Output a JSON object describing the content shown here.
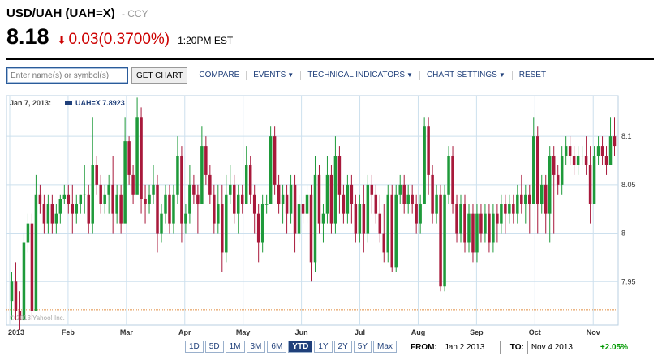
{
  "header": {
    "title": "USD/UAH (UAH=X)",
    "exchange": "- CCY",
    "price": "8.18",
    "change": "0.03",
    "change_pct": "(0.3700%)",
    "time": "1:20PM EST"
  },
  "toolbar": {
    "symbol_placeholder": "Enter name(s) or symbol(s)",
    "get_chart": "GET CHART",
    "compare": "COMPARE",
    "events": "EVENTS",
    "technical_indicators": "TECHNICAL INDICATORS",
    "chart_settings": "CHART SETTINGS",
    "reset": "RESET"
  },
  "legend": {
    "date": "Jan 7, 2013:",
    "series": "UAH=X 7.8923"
  },
  "copyright": "© 2013 Yahoo! Inc.",
  "timeframes": [
    "1D",
    "5D",
    "1M",
    "3M",
    "6M",
    "YTD",
    "1Y",
    "2Y",
    "5Y",
    "Max"
  ],
  "active_timeframe": "YTD",
  "range": {
    "from_label": "FROM:",
    "from": "Jan 2 2013",
    "to_label": "TO:",
    "to": "Nov 4 2013",
    "change": "+2.05%"
  },
  "colors": {
    "up": "#1e9a3a",
    "down": "#a8193b",
    "grid": "#cde0ee",
    "ref_line": "#e08a3c"
  },
  "chart_data": {
    "type": "candlestick",
    "x_ticks": [
      "2013",
      "Feb",
      "Mar",
      "Apr",
      "May",
      "Jun",
      "Jul",
      "Aug",
      "Sep",
      "Oct",
      "Nov"
    ],
    "y_ticks": [
      7.95,
      8.0,
      8.05,
      8.1
    ],
    "ylim": [
      7.905,
      8.142
    ],
    "reference_line": 7.921,
    "grid": true,
    "series": [
      {
        "name": "UAH=X",
        "values": [
          {
            "o": 7.93,
            "h": 7.96,
            "l": 7.91,
            "c": 7.95
          },
          {
            "o": 7.95,
            "h": 7.97,
            "l": 7.91,
            "c": 7.92
          },
          {
            "o": 7.92,
            "h": 7.94,
            "l": 7.9,
            "c": 7.91
          },
          {
            "o": 7.91,
            "h": 8.0,
            "l": 7.91,
            "c": 7.99
          },
          {
            "o": 7.99,
            "h": 8.02,
            "l": 7.98,
            "c": 8.01
          },
          {
            "o": 8.01,
            "h": 8.02,
            "l": 7.91,
            "c": 7.92
          },
          {
            "o": 7.92,
            "h": 8.06,
            "l": 7.92,
            "c": 8.04
          },
          {
            "o": 8.04,
            "h": 8.05,
            "l": 8.02,
            "c": 8.03
          },
          {
            "o": 8.03,
            "h": 8.04,
            "l": 8.0,
            "c": 8.01
          },
          {
            "o": 8.01,
            "h": 8.04,
            "l": 8.0,
            "c": 8.03
          },
          {
            "o": 8.03,
            "h": 8.04,
            "l": 8.0,
            "c": 8.01
          },
          {
            "o": 8.01,
            "h": 8.03,
            "l": 8.0,
            "c": 8.02
          },
          {
            "o": 8.02,
            "h": 8.04,
            "l": 8.01,
            "c": 8.035
          },
          {
            "o": 8.035,
            "h": 8.05,
            "l": 8.03,
            "c": 8.04
          },
          {
            "o": 8.04,
            "h": 8.05,
            "l": 8.02,
            "c": 8.03
          },
          {
            "o": 8.03,
            "h": 8.05,
            "l": 8.0,
            "c": 8.02
          },
          {
            "o": 8.02,
            "h": 8.04,
            "l": 8.01,
            "c": 8.03
          },
          {
            "o": 8.03,
            "h": 8.04,
            "l": 8.02,
            "c": 8.04
          },
          {
            "o": 8.04,
            "h": 8.07,
            "l": 8.02,
            "c": 8.04
          },
          {
            "o": 8.04,
            "h": 8.05,
            "l": 8.0,
            "c": 8.01
          },
          {
            "o": 8.01,
            "h": 8.12,
            "l": 8.0,
            "c": 8.07
          },
          {
            "o": 8.07,
            "h": 8.08,
            "l": 8.04,
            "c": 8.05
          },
          {
            "o": 8.05,
            "h": 8.06,
            "l": 8.02,
            "c": 8.03
          },
          {
            "o": 8.03,
            "h": 8.05,
            "l": 8.02,
            "c": 8.04
          },
          {
            "o": 8.04,
            "h": 8.06,
            "l": 8.02,
            "c": 8.05
          },
          {
            "o": 8.05,
            "h": 8.08,
            "l": 8.0,
            "c": 8.02
          },
          {
            "o": 8.02,
            "h": 8.05,
            "l": 8.01,
            "c": 8.04
          },
          {
            "o": 8.04,
            "h": 8.05,
            "l": 8.0,
            "c": 8.01
          },
          {
            "o": 8.01,
            "h": 8.12,
            "l": 8.02,
            "c": 8.095
          },
          {
            "o": 8.095,
            "h": 8.1,
            "l": 8.05,
            "c": 8.06
          },
          {
            "o": 8.06,
            "h": 8.07,
            "l": 8.03,
            "c": 8.04
          },
          {
            "o": 8.04,
            "h": 8.14,
            "l": 8.05,
            "c": 8.12
          },
          {
            "o": 8.12,
            "h": 8.13,
            "l": 8.02,
            "c": 8.035
          },
          {
            "o": 8.035,
            "h": 8.05,
            "l": 8.01,
            "c": 8.03
          },
          {
            "o": 8.03,
            "h": 8.05,
            "l": 8.02,
            "c": 8.04
          },
          {
            "o": 8.04,
            "h": 8.07,
            "l": 8.03,
            "c": 8.05
          },
          {
            "o": 8.05,
            "h": 8.06,
            "l": 7.98,
            "c": 8.0
          },
          {
            "o": 8.0,
            "h": 8.03,
            "l": 7.99,
            "c": 8.02
          },
          {
            "o": 8.02,
            "h": 8.05,
            "l": 8.01,
            "c": 8.04
          },
          {
            "o": 8.04,
            "h": 8.05,
            "l": 8.0,
            "c": 8.01
          },
          {
            "o": 8.01,
            "h": 8.05,
            "l": 8.0,
            "c": 8.04
          },
          {
            "o": 8.04,
            "h": 8.1,
            "l": 8.03,
            "c": 8.08
          },
          {
            "o": 8.08,
            "h": 8.09,
            "l": 7.99,
            "c": 8.01
          },
          {
            "o": 8.01,
            "h": 8.03,
            "l": 8.0,
            "c": 8.02
          },
          {
            "o": 8.02,
            "h": 8.07,
            "l": 8.01,
            "c": 8.05
          },
          {
            "o": 8.05,
            "h": 8.06,
            "l": 8.03,
            "c": 8.04
          },
          {
            "o": 8.04,
            "h": 8.05,
            "l": 8.0,
            "c": 8.03
          },
          {
            "o": 8.03,
            "h": 8.11,
            "l": 8.03,
            "c": 8.09
          },
          {
            "o": 8.09,
            "h": 8.1,
            "l": 8.05,
            "c": 8.06
          },
          {
            "o": 8.06,
            "h": 8.07,
            "l": 8.03,
            "c": 8.04
          },
          {
            "o": 8.04,
            "h": 8.05,
            "l": 8.0,
            "c": 8.01
          },
          {
            "o": 8.01,
            "h": 8.05,
            "l": 8.0,
            "c": 8.03
          },
          {
            "o": 8.03,
            "h": 8.05,
            "l": 7.96,
            "c": 7.98
          },
          {
            "o": 7.98,
            "h": 8.06,
            "l": 7.97,
            "c": 8.04
          },
          {
            "o": 8.04,
            "h": 8.07,
            "l": 8.03,
            "c": 8.05
          },
          {
            "o": 8.05,
            "h": 8.06,
            "l": 8.01,
            "c": 8.02
          },
          {
            "o": 8.02,
            "h": 8.05,
            "l": 8.0,
            "c": 8.04
          },
          {
            "o": 8.04,
            "h": 8.05,
            "l": 8.02,
            "c": 8.03
          },
          {
            "o": 8.03,
            "h": 8.09,
            "l": 8.03,
            "c": 8.07
          },
          {
            "o": 8.07,
            "h": 8.08,
            "l": 8.03,
            "c": 8.04
          },
          {
            "o": 8.04,
            "h": 8.05,
            "l": 8.0,
            "c": 8.02
          },
          {
            "o": 8.02,
            "h": 8.03,
            "l": 7.97,
            "c": 7.99
          },
          {
            "o": 7.99,
            "h": 8.04,
            "l": 7.98,
            "c": 8.03
          },
          {
            "o": 8.03,
            "h": 8.04,
            "l": 8.02,
            "c": 8.03
          },
          {
            "o": 8.03,
            "h": 8.11,
            "l": 8.03,
            "c": 8.1
          },
          {
            "o": 8.1,
            "h": 8.11,
            "l": 8.04,
            "c": 8.05
          },
          {
            "o": 8.05,
            "h": 8.06,
            "l": 8.02,
            "c": 8.03
          },
          {
            "o": 8.03,
            "h": 8.05,
            "l": 8.01,
            "c": 8.04
          },
          {
            "o": 8.04,
            "h": 8.05,
            "l": 8.0,
            "c": 8.02
          },
          {
            "o": 8.02,
            "h": 8.06,
            "l": 8.01,
            "c": 8.05
          },
          {
            "o": 8.05,
            "h": 8.06,
            "l": 7.98,
            "c": 8.0
          },
          {
            "o": 8.0,
            "h": 8.04,
            "l": 7.99,
            "c": 8.03
          },
          {
            "o": 8.03,
            "h": 8.04,
            "l": 8.01,
            "c": 8.02
          },
          {
            "o": 8.02,
            "h": 8.05,
            "l": 8.01,
            "c": 8.04
          },
          {
            "o": 8.04,
            "h": 8.05,
            "l": 7.95,
            "c": 7.97
          },
          {
            "o": 7.97,
            "h": 8.08,
            "l": 7.96,
            "c": 8.06
          },
          {
            "o": 8.06,
            "h": 8.07,
            "l": 8.0,
            "c": 8.01
          },
          {
            "o": 8.01,
            "h": 8.03,
            "l": 7.99,
            "c": 8.02
          },
          {
            "o": 8.02,
            "h": 8.08,
            "l": 8.01,
            "c": 8.06
          },
          {
            "o": 8.06,
            "h": 8.07,
            "l": 8.0,
            "c": 8.01
          },
          {
            "o": 8.01,
            "h": 8.1,
            "l": 8.0,
            "c": 8.08
          },
          {
            "o": 8.08,
            "h": 8.09,
            "l": 8.02,
            "c": 8.04
          },
          {
            "o": 8.04,
            "h": 8.05,
            "l": 8.01,
            "c": 8.02
          },
          {
            "o": 8.02,
            "h": 8.06,
            "l": 8.01,
            "c": 8.05
          },
          {
            "o": 8.05,
            "h": 8.06,
            "l": 8.01,
            "c": 8.03
          },
          {
            "o": 8.03,
            "h": 8.04,
            "l": 7.99,
            "c": 8.0
          },
          {
            "o": 8.0,
            "h": 8.04,
            "l": 7.99,
            "c": 8.03
          },
          {
            "o": 8.03,
            "h": 8.05,
            "l": 7.98,
            "c": 8.0
          },
          {
            "o": 8.0,
            "h": 8.06,
            "l": 7.99,
            "c": 8.05
          },
          {
            "o": 8.05,
            "h": 8.06,
            "l": 8.02,
            "c": 8.04
          },
          {
            "o": 8.04,
            "h": 8.05,
            "l": 8.01,
            "c": 8.02
          },
          {
            "o": 8.02,
            "h": 8.04,
            "l": 7.99,
            "c": 8.0
          },
          {
            "o": 8.0,
            "h": 8.03,
            "l": 7.97,
            "c": 7.98
          },
          {
            "o": 7.98,
            "h": 8.05,
            "l": 7.97,
            "c": 8.04
          },
          {
            "o": 8.04,
            "h": 8.05,
            "l": 7.96,
            "c": 7.965
          },
          {
            "o": 7.965,
            "h": 8.05,
            "l": 7.96,
            "c": 8.04
          },
          {
            "o": 8.04,
            "h": 8.06,
            "l": 8.03,
            "c": 8.05
          },
          {
            "o": 8.05,
            "h": 8.06,
            "l": 8.02,
            "c": 8.03
          },
          {
            "o": 8.03,
            "h": 8.05,
            "l": 8.02,
            "c": 8.04
          },
          {
            "o": 8.04,
            "h": 8.05,
            "l": 8.02,
            "c": 8.03
          },
          {
            "o": 8.03,
            "h": 8.04,
            "l": 8.0,
            "c": 8.01
          },
          {
            "o": 8.01,
            "h": 8.04,
            "l": 8.0,
            "c": 8.03
          },
          {
            "o": 8.03,
            "h": 8.12,
            "l": 8.03,
            "c": 8.11
          },
          {
            "o": 8.11,
            "h": 8.12,
            "l": 8.04,
            "c": 8.06
          },
          {
            "o": 8.06,
            "h": 8.07,
            "l": 8.01,
            "c": 8.02
          },
          {
            "o": 8.02,
            "h": 8.05,
            "l": 8.01,
            "c": 8.04
          },
          {
            "o": 8.04,
            "h": 8.05,
            "l": 7.94,
            "c": 7.945
          },
          {
            "o": 7.945,
            "h": 8.05,
            "l": 7.94,
            "c": 8.04
          },
          {
            "o": 8.04,
            "h": 8.09,
            "l": 8.03,
            "c": 8.08
          },
          {
            "o": 8.08,
            "h": 8.09,
            "l": 8.02,
            "c": 8.03
          },
          {
            "o": 8.03,
            "h": 8.04,
            "l": 7.99,
            "c": 8.0
          },
          {
            "o": 8.0,
            "h": 8.04,
            "l": 7.99,
            "c": 8.03
          },
          {
            "o": 8.03,
            "h": 8.04,
            "l": 7.98,
            "c": 7.99
          },
          {
            "o": 7.99,
            "h": 8.03,
            "l": 7.98,
            "c": 8.02
          },
          {
            "o": 8.02,
            "h": 8.03,
            "l": 7.97,
            "c": 7.98
          },
          {
            "o": 7.98,
            "h": 8.03,
            "l": 7.97,
            "c": 8.02
          },
          {
            "o": 8.02,
            "h": 8.03,
            "l": 7.99,
            "c": 8.0
          },
          {
            "o": 8.0,
            "h": 8.03,
            "l": 7.99,
            "c": 8.02
          },
          {
            "o": 8.02,
            "h": 8.03,
            "l": 7.98,
            "c": 7.99
          },
          {
            "o": 7.99,
            "h": 8.03,
            "l": 7.98,
            "c": 8.02
          },
          {
            "o": 8.02,
            "h": 8.03,
            "l": 7.99,
            "c": 8.01
          },
          {
            "o": 8.01,
            "h": 8.04,
            "l": 8.0,
            "c": 8.03
          },
          {
            "o": 8.03,
            "h": 8.04,
            "l": 8.0,
            "c": 8.02
          },
          {
            "o": 8.02,
            "h": 8.04,
            "l": 8.01,
            "c": 8.03
          },
          {
            "o": 8.03,
            "h": 8.04,
            "l": 8.01,
            "c": 8.02
          },
          {
            "o": 8.02,
            "h": 8.05,
            "l": 8.01,
            "c": 8.04
          },
          {
            "o": 8.04,
            "h": 8.06,
            "l": 8.02,
            "c": 8.03
          },
          {
            "o": 8.03,
            "h": 8.05,
            "l": 8.01,
            "c": 8.04
          },
          {
            "o": 8.04,
            "h": 8.05,
            "l": 8.0,
            "c": 8.03
          },
          {
            "o": 8.03,
            "h": 8.12,
            "l": 8.03,
            "c": 8.1
          },
          {
            "o": 8.1,
            "h": 8.11,
            "l": 8.0,
            "c": 8.03
          },
          {
            "o": 8.03,
            "h": 8.06,
            "l": 8.02,
            "c": 8.05
          },
          {
            "o": 8.05,
            "h": 8.06,
            "l": 8.0,
            "c": 8.02
          },
          {
            "o": 8.02,
            "h": 8.09,
            "l": 7.99,
            "c": 8.08
          },
          {
            "o": 8.08,
            "h": 8.09,
            "l": 8.0,
            "c": 8.06
          },
          {
            "o": 8.06,
            "h": 8.07,
            "l": 8.04,
            "c": 8.05
          },
          {
            "o": 8.05,
            "h": 8.09,
            "l": 8.04,
            "c": 8.08
          },
          {
            "o": 8.08,
            "h": 8.1,
            "l": 8.07,
            "c": 8.09
          },
          {
            "o": 8.09,
            "h": 8.1,
            "l": 8.07,
            "c": 8.08
          },
          {
            "o": 8.08,
            "h": 8.09,
            "l": 8.06,
            "c": 8.07
          },
          {
            "o": 8.07,
            "h": 8.09,
            "l": 8.06,
            "c": 8.08
          },
          {
            "o": 8.08,
            "h": 8.09,
            "l": 8.07,
            "c": 8.08
          },
          {
            "o": 8.08,
            "h": 8.1,
            "l": 8.06,
            "c": 8.07
          },
          {
            "o": 8.07,
            "h": 8.09,
            "l": 8.01,
            "c": 8.03
          },
          {
            "o": 8.03,
            "h": 8.09,
            "l": 8.03,
            "c": 8.08
          },
          {
            "o": 8.08,
            "h": 8.1,
            "l": 8.07,
            "c": 8.09
          },
          {
            "o": 8.09,
            "h": 8.1,
            "l": 8.07,
            "c": 8.08
          },
          {
            "o": 8.08,
            "h": 8.09,
            "l": 8.06,
            "c": 8.07
          },
          {
            "o": 8.07,
            "h": 8.12,
            "l": 8.07,
            "c": 8.1
          },
          {
            "o": 8.1,
            "h": 8.12,
            "l": 8.08,
            "c": 8.09
          }
        ]
      }
    ]
  }
}
